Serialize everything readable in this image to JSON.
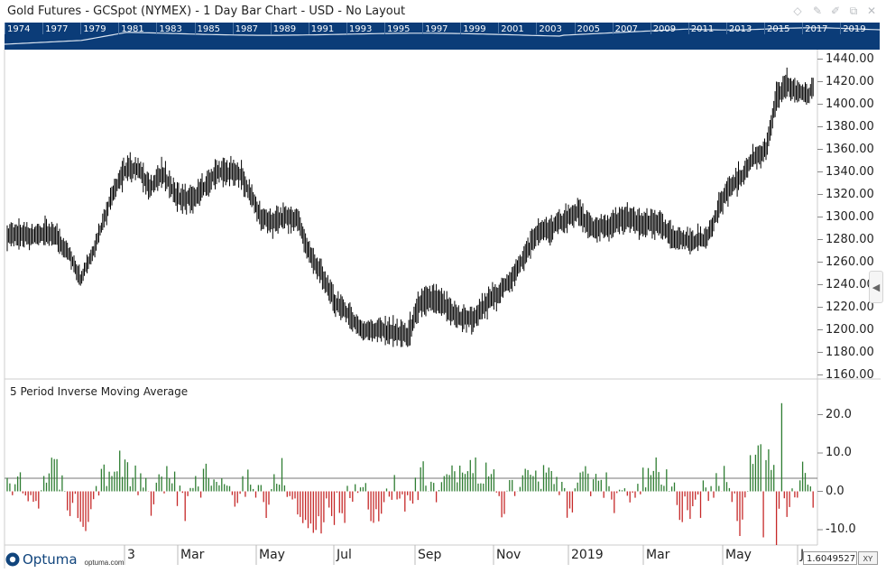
{
  "window": {
    "title": "Gold Futures - GCSpot (NYMEX) - 1 Day Bar Chart - USD - No Layout"
  },
  "navigator": {
    "years": [
      "1974",
      "1977",
      "1979",
      "1981",
      "1983",
      "1985",
      "1987",
      "1989",
      "1991",
      "1993",
      "1995",
      "1997",
      "1999",
      "2001",
      "2003",
      "2005",
      "2007",
      "2009",
      "2011",
      "2013",
      "2015",
      "2017",
      "2019"
    ]
  },
  "indicator": {
    "title": "5 Period Inverse Moving Average"
  },
  "readout": {
    "value": "1.6049527",
    "xy_label": "XY"
  },
  "logo": {
    "name": "Optuma",
    "url": "optuma.com"
  },
  "colors": {
    "nav_bg": "#0b3c78",
    "bar": "#000000",
    "positive": "#2e7d32",
    "negative": "#c62828"
  },
  "chart_data": [
    {
      "type": "bar",
      "subtype": "ohlc",
      "title": "Gold Futures - GCSpot (NYMEX)",
      "x_tick_labels": [
        "3",
        "Mar",
        "May",
        "Jul",
        "Sep",
        "Nov",
        "2019",
        "Mar",
        "May",
        "Ju"
      ],
      "y_tick_labels": [
        "1160.00",
        "1180.00",
        "1200.00",
        "1220.00",
        "1240.00",
        "1260.00",
        "1280.00",
        "1300.00",
        "1320.00",
        "1340.00",
        "1360.00",
        "1380.00",
        "1400.00",
        "1420.00",
        "1440.00"
      ],
      "ylim": [
        1158,
        1446
      ],
      "anchors": [
        [
          0,
          1285
        ],
        [
          14,
          1283
        ],
        [
          28,
          1286
        ],
        [
          38,
          1282
        ],
        [
          48,
          1265
        ],
        [
          56,
          1245
        ],
        [
          66,
          1270
        ],
        [
          80,
          1320
        ],
        [
          92,
          1345
        ],
        [
          102,
          1340
        ],
        [
          110,
          1325
        ],
        [
          118,
          1340
        ],
        [
          130,
          1318
        ],
        [
          140,
          1315
        ],
        [
          150,
          1325
        ],
        [
          160,
          1340
        ],
        [
          168,
          1340
        ],
        [
          178,
          1338
        ],
        [
          186,
          1320
        ],
        [
          194,
          1300
        ],
        [
          202,
          1295
        ],
        [
          212,
          1300
        ],
        [
          222,
          1298
        ],
        [
          230,
          1270
        ],
        [
          240,
          1250
        ],
        [
          250,
          1225
        ],
        [
          260,
          1215
        ],
        [
          270,
          1200
        ],
        [
          282,
          1200
        ],
        [
          296,
          1198
        ],
        [
          306,
          1195
        ],
        [
          316,
          1225
        ],
        [
          326,
          1228
        ],
        [
          336,
          1220
        ],
        [
          346,
          1210
        ],
        [
          356,
          1210
        ],
        [
          368,
          1225
        ],
        [
          382,
          1240
        ],
        [
          394,
          1262
        ],
        [
          404,
          1285
        ],
        [
          416,
          1290
        ],
        [
          426,
          1298
        ],
        [
          436,
          1305
        ],
        [
          446,
          1290
        ],
        [
          460,
          1292
        ],
        [
          474,
          1300
        ],
        [
          486,
          1293
        ],
        [
          498,
          1296
        ],
        [
          506,
          1283
        ],
        [
          516,
          1280
        ],
        [
          526,
          1278
        ],
        [
          534,
          1282
        ],
        [
          540,
          1295
        ],
        [
          546,
          1315
        ],
        [
          554,
          1328
        ],
        [
          562,
          1337
        ],
        [
          570,
          1352
        ],
        [
          580,
          1360
        ],
        [
          588,
          1405
        ],
        [
          596,
          1418
        ],
        [
          604,
          1410
        ],
        [
          612,
          1408
        ],
        [
          616,
          1418
        ]
      ]
    },
    {
      "type": "bar",
      "title": "5 Period Inverse Moving Average",
      "y_tick_labels": [
        "-10.0",
        "0.0",
        "10.0",
        "20.0"
      ],
      "ylim": [
        -14,
        26
      ],
      "anchors": [
        [
          0,
          3
        ],
        [
          20,
          -2
        ],
        [
          36,
          6
        ],
        [
          48,
          -3
        ],
        [
          60,
          -6
        ],
        [
          72,
          5
        ],
        [
          88,
          7
        ],
        [
          100,
          2
        ],
        [
          112,
          -3
        ],
        [
          124,
          6
        ],
        [
          136,
          -5
        ],
        [
          150,
          4
        ],
        [
          162,
          2
        ],
        [
          174,
          -3
        ],
        [
          186,
          5
        ],
        [
          198,
          -4
        ],
        [
          210,
          6
        ],
        [
          222,
          -6
        ],
        [
          234,
          -10
        ],
        [
          246,
          -5
        ],
        [
          258,
          -4
        ],
        [
          270,
          3
        ],
        [
          282,
          -8
        ],
        [
          294,
          2
        ],
        [
          306,
          -5
        ],
        [
          318,
          4
        ],
        [
          330,
          -3
        ],
        [
          342,
          5
        ],
        [
          354,
          6
        ],
        [
          368,
          5
        ],
        [
          380,
          -4
        ],
        [
          392,
          4
        ],
        [
          404,
          3
        ],
        [
          416,
          4
        ],
        [
          428,
          -3
        ],
        [
          440,
          2
        ],
        [
          452,
          3
        ],
        [
          466,
          -2
        ],
        [
          478,
          -3
        ],
        [
          490,
          5
        ],
        [
          502,
          4
        ],
        [
          514,
          -4
        ],
        [
          526,
          -6
        ],
        [
          538,
          3
        ],
        [
          550,
          2
        ],
        [
          560,
          -8
        ],
        [
          570,
          9
        ],
        [
          582,
          12
        ],
        [
          590,
          -7
        ],
        [
          600,
          -3
        ],
        [
          608,
          4
        ],
        [
          616,
          0
        ]
      ]
    }
  ]
}
